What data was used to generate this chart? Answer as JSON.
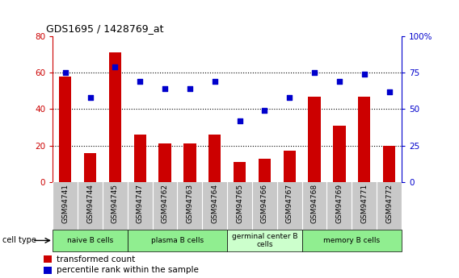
{
  "title": "GDS1695 / 1428769_at",
  "samples": [
    "GSM94741",
    "GSM94744",
    "GSM94745",
    "GSM94747",
    "GSM94762",
    "GSM94763",
    "GSM94764",
    "GSM94765",
    "GSM94766",
    "GSM94767",
    "GSM94768",
    "GSM94769",
    "GSM94771",
    "GSM94772"
  ],
  "bar_values": [
    58,
    16,
    71,
    26,
    21,
    21,
    26,
    11,
    13,
    17,
    47,
    31,
    47,
    20
  ],
  "dot_values": [
    75,
    58,
    79,
    69,
    64,
    64,
    69,
    42,
    49,
    58,
    75,
    69,
    74,
    62
  ],
  "ylim_left": [
    0,
    80
  ],
  "ylim_right": [
    0,
    100
  ],
  "yticks_left": [
    0,
    20,
    40,
    60,
    80
  ],
  "yticks_right": [
    0,
    25,
    50,
    75,
    100
  ],
  "ytick_labels_right": [
    "0",
    "25",
    "50",
    "75",
    "100%"
  ],
  "bar_color": "#cc0000",
  "dot_color": "#0000cc",
  "cell_types": [
    {
      "label": "naive B cells",
      "start": 0,
      "end": 3,
      "color": "#90ee90"
    },
    {
      "label": "plasma B cells",
      "start": 3,
      "end": 7,
      "color": "#90ee90"
    },
    {
      "label": "germinal center B\ncells",
      "start": 7,
      "end": 10,
      "color": "#ccffcc"
    },
    {
      "label": "memory B cells",
      "start": 10,
      "end": 14,
      "color": "#90ee90"
    }
  ],
  "cell_type_label": "cell type",
  "legend_bar_label": "transformed count",
  "legend_dot_label": "percentile rank within the sample",
  "tick_bg_color": "#c8c8c8",
  "tick_border_color": "#ffffff",
  "cell_bar_border_color": "#000000",
  "grid_yticks": [
    20,
    40,
    60
  ],
  "bar_width": 0.5
}
